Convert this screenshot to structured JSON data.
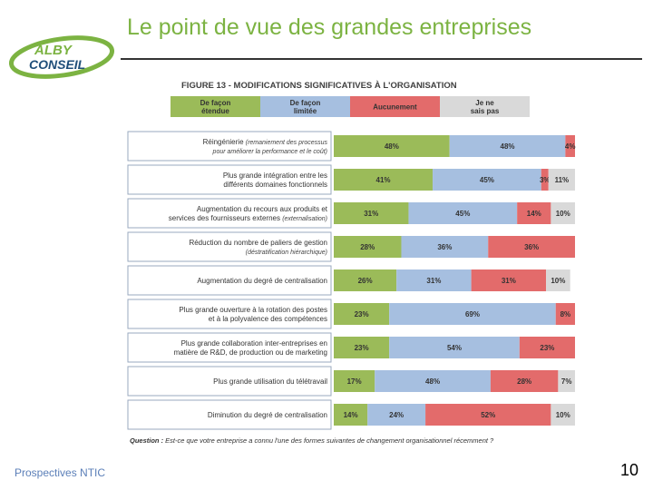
{
  "slide": {
    "title": "Le point de vue des grandes entreprises",
    "footer": "Prospectives NTIC",
    "page_number": "10",
    "logo": {
      "line1": "ALBY",
      "line2": "CONSEIL"
    }
  },
  "colors": {
    "title": "#7cb342",
    "etendue": "#9bbb59",
    "limitee": "#a6bfe0",
    "aucunement": "#e36b6b",
    "nsp": "#d9d9d9"
  },
  "chart_data": {
    "type": "bar",
    "orientation": "horizontal",
    "stacked": true,
    "title": "FIGURE 13 - MODIFICATIONS SIGNIFICATIVES À L'ORGANISATION",
    "unit": "%",
    "series": [
      {
        "name": "De façon étendue",
        "name_lines": [
          "De façon",
          "étendue"
        ],
        "color": "#9bbb59",
        "values": [
          48,
          41,
          31,
          28,
          26,
          23,
          23,
          17,
          14
        ]
      },
      {
        "name": "De façon limitée",
        "name_lines": [
          "De façon",
          "limitée"
        ],
        "color": "#a6bfe0",
        "values": [
          48,
          45,
          45,
          36,
          31,
          69,
          54,
          48,
          24
        ]
      },
      {
        "name": "Aucunement",
        "name_lines": [
          "Aucunement"
        ],
        "color": "#e36b6b",
        "values": [
          4,
          3,
          14,
          36,
          31,
          8,
          23,
          28,
          52
        ]
      },
      {
        "name": "Je ne sais pas",
        "name_lines": [
          "Je ne",
          "sais pas"
        ],
        "color": "#d9d9d9",
        "values": [
          0,
          11,
          10,
          0,
          10,
          0,
          0,
          7,
          10
        ]
      }
    ],
    "categories": [
      {
        "lines": [
          {
            "text": "Réingénierie ",
            "italic": "(remaniement des processus"
          },
          {
            "text": "",
            "italic": "pour améliorer la performance et le coût)"
          }
        ]
      },
      {
        "lines": [
          {
            "text": "Plus grande intégration entre les",
            "italic": ""
          },
          {
            "text": "différents domaines fonctionnels",
            "italic": ""
          }
        ]
      },
      {
        "lines": [
          {
            "text": "Augmentation du recours aux produits et",
            "italic": ""
          },
          {
            "text": "services des fournisseurs externes ",
            "italic": "(externalisation)"
          }
        ]
      },
      {
        "lines": [
          {
            "text": "Réduction du nombre de paliers de gestion",
            "italic": ""
          },
          {
            "text": "",
            "italic": "(déstratification hiérarchique)"
          }
        ]
      },
      {
        "lines": [
          {
            "text": "Augmentation du degré de centralisation",
            "italic": ""
          }
        ]
      },
      {
        "lines": [
          {
            "text": "Plus grande ouverture à la rotation des postes",
            "italic": ""
          },
          {
            "text": "et à la polyvalence des compétences",
            "italic": ""
          }
        ]
      },
      {
        "lines": [
          {
            "text": "Plus grande collaboration inter-entreprises en",
            "italic": ""
          },
          {
            "text": "matière de R&D, de production ou de marketing",
            "italic": ""
          }
        ]
      },
      {
        "lines": [
          {
            "text": "Plus grande utilisation du télétravail",
            "italic": ""
          }
        ]
      },
      {
        "lines": [
          {
            "text": "Diminution du degré de centralisation",
            "italic": ""
          }
        ]
      }
    ],
    "question_label": "Question :",
    "question_text": "Est-ce que votre entreprise a connu l'une des formes suivantes de changement organisationnel récemment ?"
  }
}
